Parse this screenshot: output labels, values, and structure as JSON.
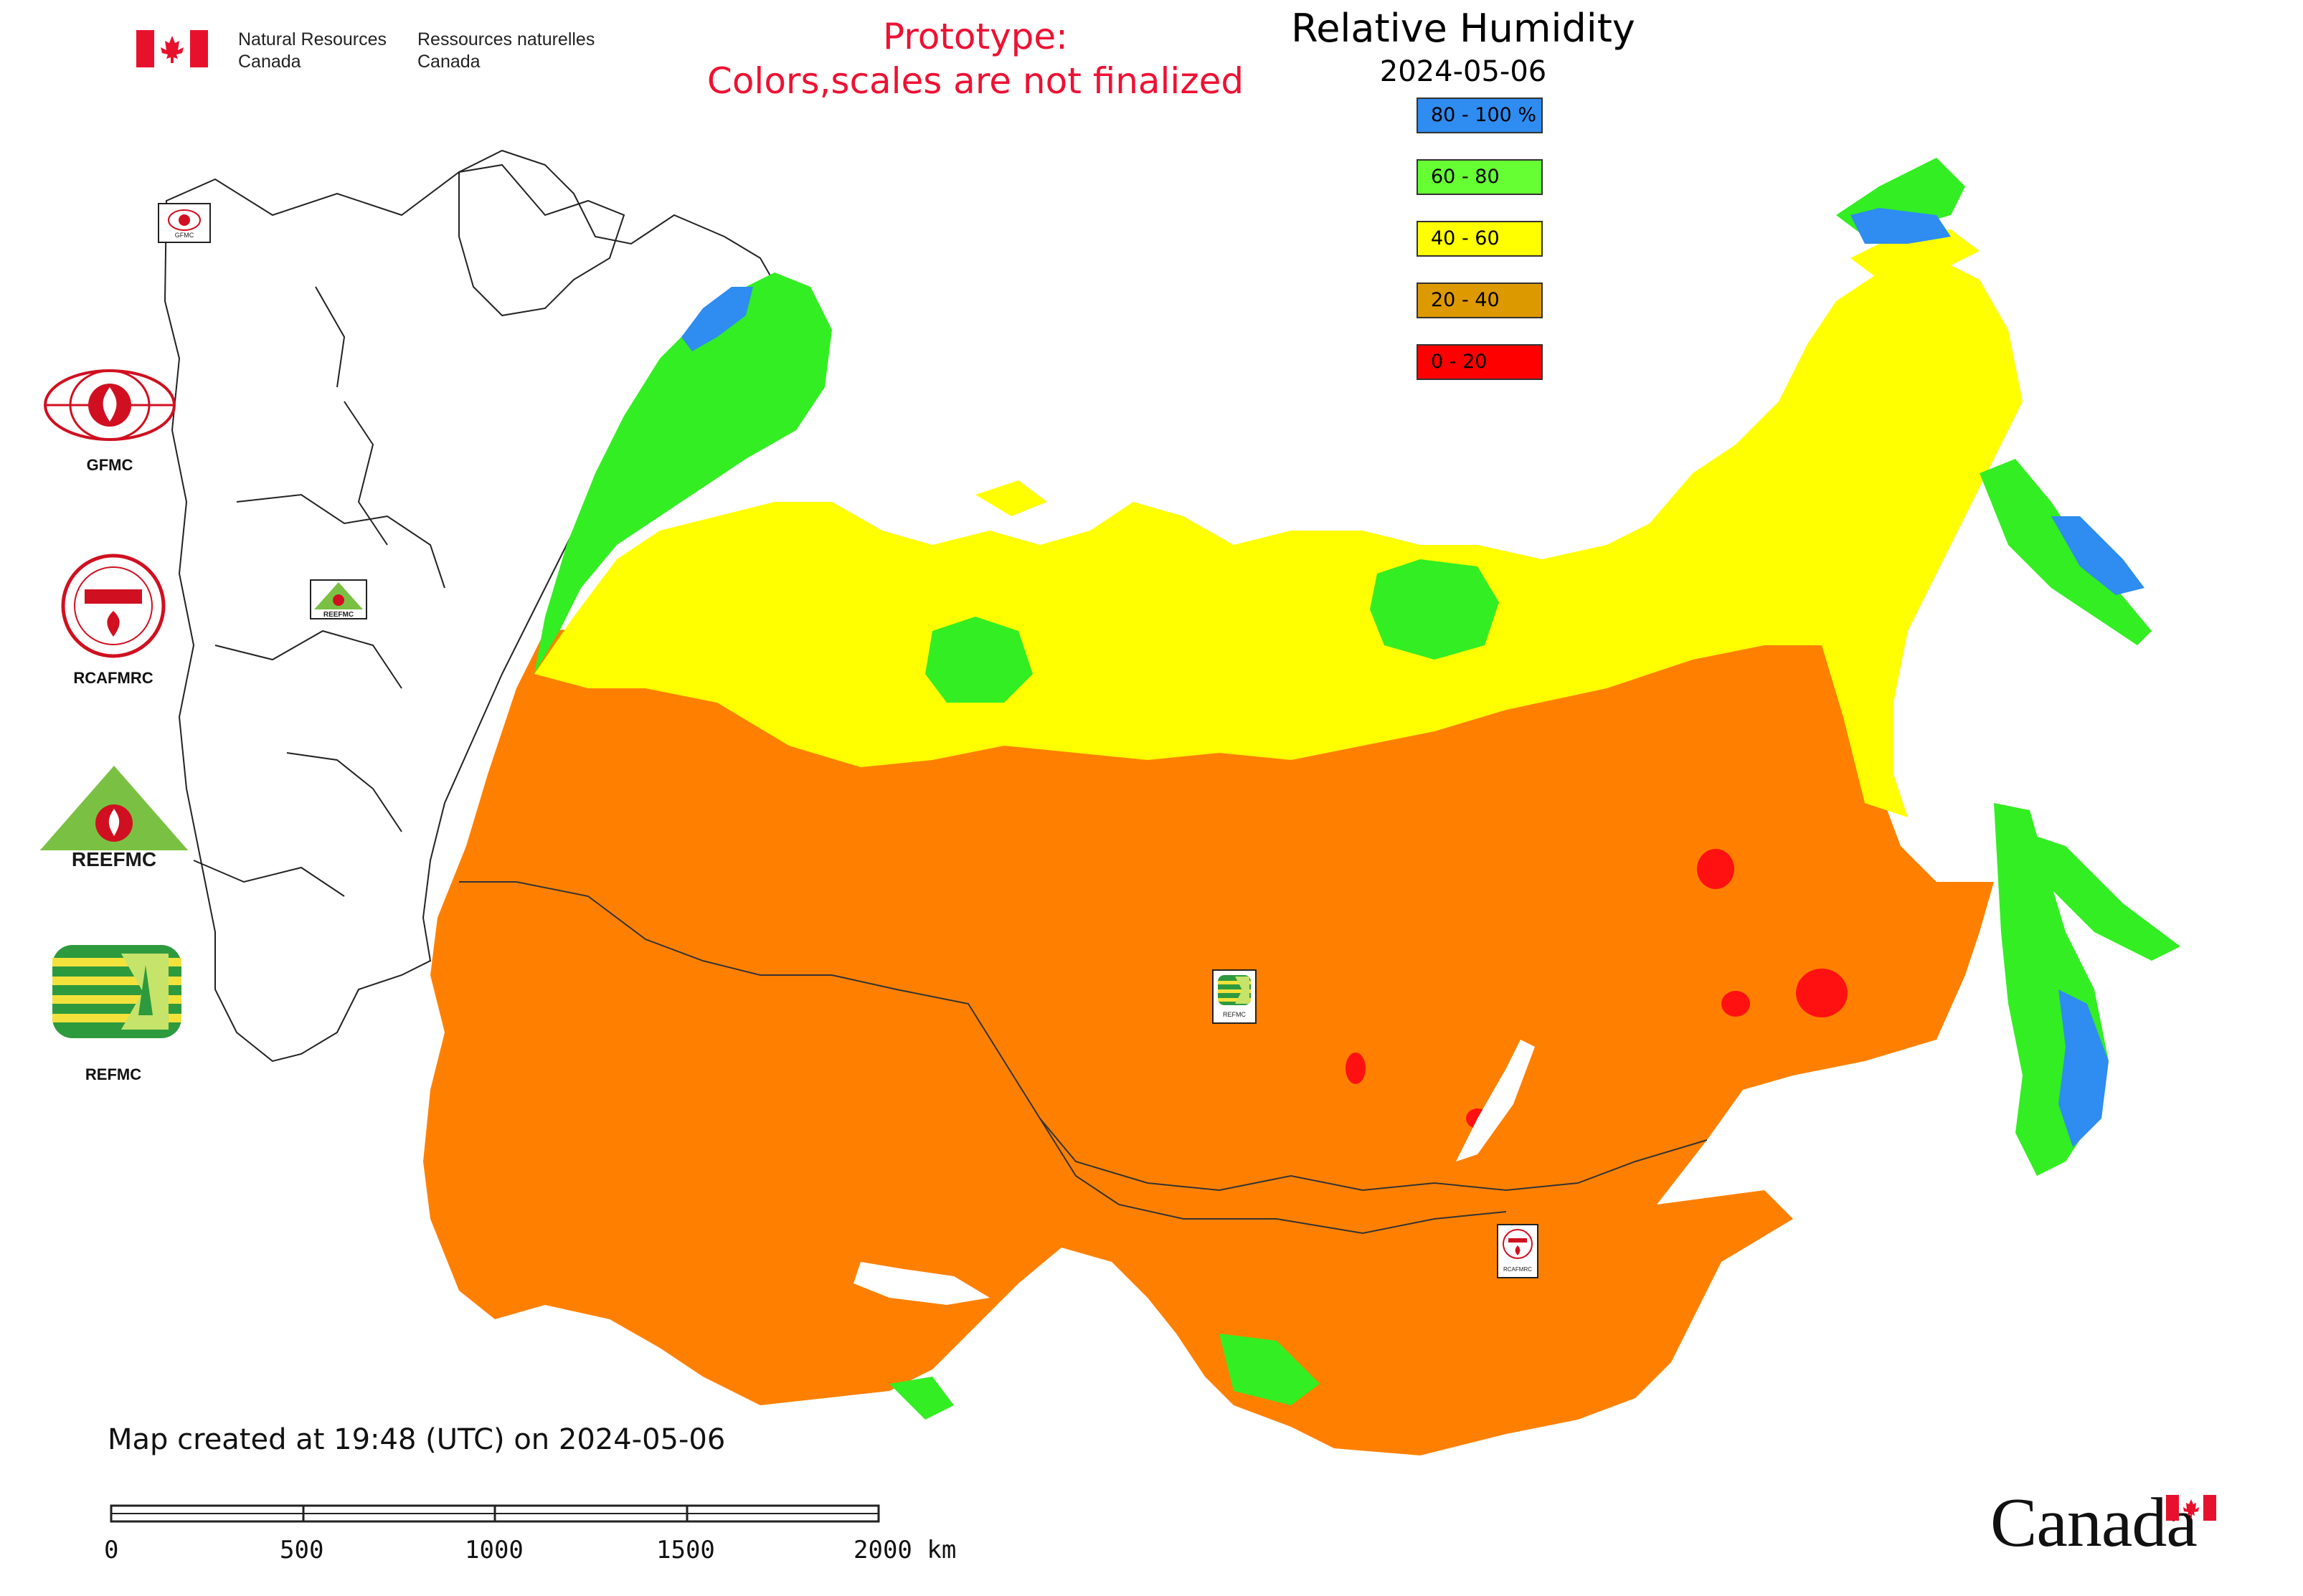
{
  "header": {
    "org_en_line1": "Natural Resources",
    "org_en_line2": "Canada",
    "org_fr_line1": "Ressources naturelles",
    "org_fr_line2": "Canada",
    "flag_icon": "canada-flag-icon"
  },
  "notice": {
    "line1": "Prototype:",
    "line2": "Colors,scales are not finalized",
    "color": "#ee1133"
  },
  "legend": {
    "title": "Relative Humidity",
    "date": "2024-05-06",
    "items": [
      {
        "label": "80 - 100 %",
        "color": "#2f8cf0"
      },
      {
        "label": "60 - 80",
        "color": "#66ff33"
      },
      {
        "label": "40 - 60",
        "color": "#ffff00"
      },
      {
        "label": "20 - 40",
        "color": "#dd9900"
      },
      {
        "label": "0 - 20",
        "color": "#ff0000"
      }
    ]
  },
  "agencies": [
    {
      "label": "GFMC",
      "icon": "gfmc-logo-icon"
    },
    {
      "label": "RCAFMRC",
      "icon": "rcafmrc-logo-icon"
    },
    {
      "label": "REEFMC",
      "icon": "reefmc-logo-icon"
    },
    {
      "label": "REFMC",
      "icon": "refmc-logo-icon"
    }
  ],
  "map": {
    "region_colors": {
      "very_humid": "#2f8cf0",
      "humid": "#33ee22",
      "moderate": "#ffff00",
      "dry": "#ff8000",
      "very_dry": "#ff1111",
      "no_data": "#ffffff"
    },
    "markers": [
      {
        "name": "GFMC",
        "icon": "gfmc-marker-icon"
      },
      {
        "name": "REEFMC",
        "icon": "reefmc-marker-icon"
      },
      {
        "name": "REFMC",
        "icon": "refmc-marker-icon"
      },
      {
        "name": "RCAFMRC",
        "icon": "rcafmrc-marker-icon"
      }
    ]
  },
  "footer": {
    "created": "Map created at 19:48 (UTC) on 2024-05-06",
    "scale_labels": [
      "0",
      "500",
      "1000",
      "1500",
      "2000 km"
    ],
    "canada_wordmark": "Canada"
  }
}
